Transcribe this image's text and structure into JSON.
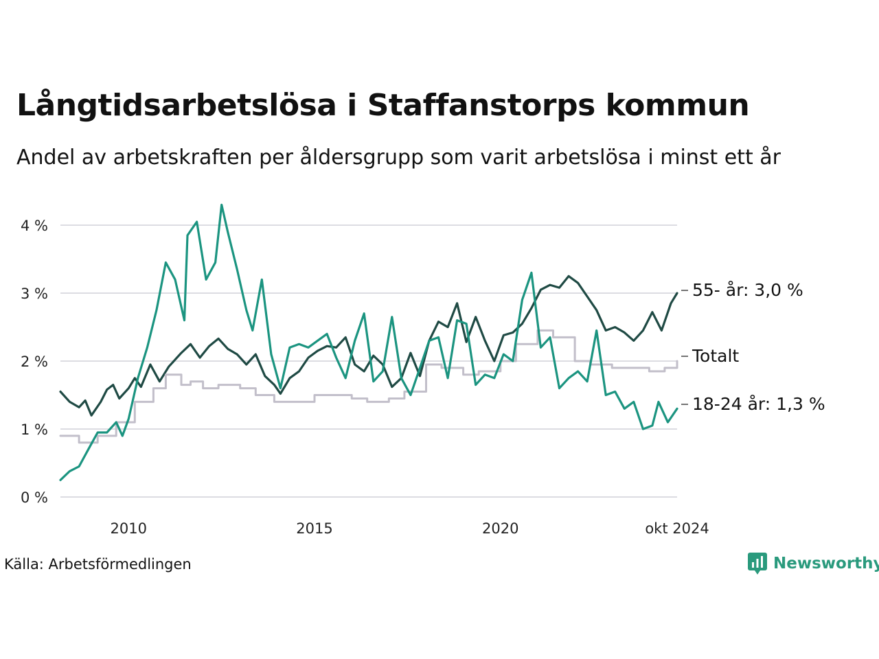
{
  "title": "Långtidsarbetslösa i Staffanstorps kommun",
  "subtitle": "Andel av arbetskraften per åldersgrupp som varit arbetslösa i minst ett år",
  "source": "Källa: Arbetsförmedlingen",
  "brand": "Newsworthy",
  "colors": {
    "s55": "#1f4a44",
    "s1824": "#1b9480",
    "total": "#c2bfca",
    "grid": "#dcdce2",
    "brand": "#2a9a7d"
  },
  "chart_data": {
    "type": "line",
    "title": "Långtidsarbetslösa i Staffanstorps kommun",
    "subtitle": "Andel av arbetskraften per åldersgrupp som varit arbetslösa i minst ett år",
    "xlabel": "",
    "ylabel": "",
    "x_start": "2008-03",
    "x_end": "2024-10",
    "ylim": [
      0,
      4.3
    ],
    "y_ticks": [
      0,
      1,
      2,
      3,
      4
    ],
    "y_tick_labels": [
      "0 %",
      "1 %",
      "2 %",
      "3 %",
      "4 %"
    ],
    "x_ticks": [
      "2010-01",
      "2015-01",
      "2020-01",
      "2024-10"
    ],
    "x_tick_labels": [
      "2010",
      "2015",
      "2020",
      "okt 2024"
    ],
    "grid": true,
    "legend": "end-labels-right",
    "series": [
      {
        "name": "55- år",
        "end_label": "55- år: 3,0 %",
        "color_key": "s55",
        "points": [
          [
            "2008-03",
            1.55
          ],
          [
            "2008-06",
            1.4
          ],
          [
            "2008-09",
            1.32
          ],
          [
            "2008-11",
            1.42
          ],
          [
            "2009-01",
            1.2
          ],
          [
            "2009-04",
            1.4
          ],
          [
            "2009-06",
            1.58
          ],
          [
            "2009-08",
            1.65
          ],
          [
            "2009-10",
            1.45
          ],
          [
            "2010-01",
            1.6
          ],
          [
            "2010-03",
            1.75
          ],
          [
            "2010-05",
            1.62
          ],
          [
            "2010-08",
            1.95
          ],
          [
            "2010-11",
            1.7
          ],
          [
            "2011-02",
            1.92
          ],
          [
            "2011-06",
            2.12
          ],
          [
            "2011-09",
            2.25
          ],
          [
            "2011-12",
            2.05
          ],
          [
            "2012-03",
            2.22
          ],
          [
            "2012-06",
            2.33
          ],
          [
            "2012-09",
            2.18
          ],
          [
            "2012-12",
            2.1
          ],
          [
            "2013-03",
            1.95
          ],
          [
            "2013-06",
            2.1
          ],
          [
            "2013-09",
            1.78
          ],
          [
            "2013-12",
            1.65
          ],
          [
            "2014-02",
            1.52
          ],
          [
            "2014-05",
            1.75
          ],
          [
            "2014-08",
            1.85
          ],
          [
            "2014-11",
            2.05
          ],
          [
            "2015-02",
            2.15
          ],
          [
            "2015-05",
            2.22
          ],
          [
            "2015-08",
            2.2
          ],
          [
            "2015-11",
            2.35
          ],
          [
            "2016-02",
            1.95
          ],
          [
            "2016-05",
            1.85
          ],
          [
            "2016-08",
            2.08
          ],
          [
            "2016-11",
            1.95
          ],
          [
            "2017-02",
            1.62
          ],
          [
            "2017-05",
            1.75
          ],
          [
            "2017-08",
            2.12
          ],
          [
            "2017-11",
            1.78
          ],
          [
            "2018-02",
            2.3
          ],
          [
            "2018-05",
            2.58
          ],
          [
            "2018-08",
            2.5
          ],
          [
            "2018-11",
            2.85
          ],
          [
            "2019-02",
            2.28
          ],
          [
            "2019-05",
            2.65
          ],
          [
            "2019-08",
            2.3
          ],
          [
            "2019-11",
            2.0
          ],
          [
            "2020-02",
            2.38
          ],
          [
            "2020-05",
            2.42
          ],
          [
            "2020-08",
            2.55
          ],
          [
            "2020-11",
            2.78
          ],
          [
            "2021-02",
            3.05
          ],
          [
            "2021-05",
            3.12
          ],
          [
            "2021-08",
            3.08
          ],
          [
            "2021-11",
            3.25
          ],
          [
            "2022-02",
            3.15
          ],
          [
            "2022-05",
            2.95
          ],
          [
            "2022-08",
            2.75
          ],
          [
            "2022-11",
            2.45
          ],
          [
            "2023-02",
            2.5
          ],
          [
            "2023-05",
            2.42
          ],
          [
            "2023-08",
            2.3
          ],
          [
            "2023-11",
            2.45
          ],
          [
            "2024-02",
            2.72
          ],
          [
            "2024-05",
            2.45
          ],
          [
            "2024-08",
            2.85
          ],
          [
            "2024-10",
            3.0
          ]
        ]
      },
      {
        "name": "Totalt",
        "end_label": "Totalt",
        "color_key": "total",
        "points": [
          [
            "2008-03",
            0.9
          ],
          [
            "2008-09",
            0.8
          ],
          [
            "2009-03",
            0.9
          ],
          [
            "2009-09",
            1.1
          ],
          [
            "2010-03",
            1.4
          ],
          [
            "2010-09",
            1.6
          ],
          [
            "2011-01",
            1.8
          ],
          [
            "2011-06",
            1.65
          ],
          [
            "2011-09",
            1.7
          ],
          [
            "2012-01",
            1.6
          ],
          [
            "2012-06",
            1.65
          ],
          [
            "2013-01",
            1.6
          ],
          [
            "2013-06",
            1.5
          ],
          [
            "2013-12",
            1.4
          ],
          [
            "2014-06",
            1.4
          ],
          [
            "2015-01",
            1.5
          ],
          [
            "2016-01",
            1.45
          ],
          [
            "2016-06",
            1.4
          ],
          [
            "2017-01",
            1.45
          ],
          [
            "2017-06",
            1.55
          ],
          [
            "2018-01",
            1.95
          ],
          [
            "2018-06",
            1.9
          ],
          [
            "2019-01",
            1.8
          ],
          [
            "2019-06",
            1.85
          ],
          [
            "2020-01",
            2.0
          ],
          [
            "2020-06",
            2.25
          ],
          [
            "2021-01",
            2.45
          ],
          [
            "2021-06",
            2.35
          ],
          [
            "2022-01",
            2.0
          ],
          [
            "2022-06",
            1.95
          ],
          [
            "2023-01",
            1.9
          ],
          [
            "2023-06",
            1.9
          ],
          [
            "2024-01",
            1.85
          ],
          [
            "2024-06",
            1.9
          ],
          [
            "2024-10",
            2.0
          ]
        ]
      },
      {
        "name": "18-24 år",
        "end_label": "18-24 år: 1,3 %",
        "color_key": "s1824",
        "points": [
          [
            "2008-03",
            0.25
          ],
          [
            "2008-06",
            0.38
          ],
          [
            "2008-09",
            0.45
          ],
          [
            "2008-12",
            0.7
          ],
          [
            "2009-03",
            0.95
          ],
          [
            "2009-06",
            0.95
          ],
          [
            "2009-09",
            1.1
          ],
          [
            "2009-11",
            0.9
          ],
          [
            "2010-01",
            1.15
          ],
          [
            "2010-04",
            1.75
          ],
          [
            "2010-07",
            2.2
          ],
          [
            "2010-10",
            2.75
          ],
          [
            "2011-01",
            3.45
          ],
          [
            "2011-04",
            3.2
          ],
          [
            "2011-07",
            2.6
          ],
          [
            "2011-08",
            3.85
          ],
          [
            "2011-11",
            4.05
          ],
          [
            "2012-02",
            3.2
          ],
          [
            "2012-05",
            3.45
          ],
          [
            "2012-07",
            4.3
          ],
          [
            "2012-09",
            3.9
          ],
          [
            "2012-12",
            3.35
          ],
          [
            "2013-03",
            2.75
          ],
          [
            "2013-05",
            2.45
          ],
          [
            "2013-08",
            3.2
          ],
          [
            "2013-11",
            2.1
          ],
          [
            "2014-02",
            1.6
          ],
          [
            "2014-05",
            2.2
          ],
          [
            "2014-08",
            2.25
          ],
          [
            "2014-11",
            2.2
          ],
          [
            "2015-02",
            2.3
          ],
          [
            "2015-05",
            2.4
          ],
          [
            "2015-08",
            2.05
          ],
          [
            "2015-11",
            1.75
          ],
          [
            "2016-02",
            2.3
          ],
          [
            "2016-05",
            2.7
          ],
          [
            "2016-08",
            1.7
          ],
          [
            "2016-11",
            1.85
          ],
          [
            "2017-02",
            2.65
          ],
          [
            "2017-05",
            1.75
          ],
          [
            "2017-08",
            1.5
          ],
          [
            "2017-11",
            1.9
          ],
          [
            "2018-02",
            2.3
          ],
          [
            "2018-05",
            2.35
          ],
          [
            "2018-08",
            1.75
          ],
          [
            "2018-11",
            2.6
          ],
          [
            "2019-02",
            2.55
          ],
          [
            "2019-05",
            1.65
          ],
          [
            "2019-08",
            1.8
          ],
          [
            "2019-11",
            1.75
          ],
          [
            "2020-02",
            2.1
          ],
          [
            "2020-05",
            2.0
          ],
          [
            "2020-08",
            2.9
          ],
          [
            "2020-11",
            3.3
          ],
          [
            "2021-02",
            2.2
          ],
          [
            "2021-05",
            2.35
          ],
          [
            "2021-08",
            1.6
          ],
          [
            "2021-11",
            1.75
          ],
          [
            "2022-02",
            1.85
          ],
          [
            "2022-05",
            1.7
          ],
          [
            "2022-08",
            2.45
          ],
          [
            "2022-11",
            1.5
          ],
          [
            "2023-02",
            1.55
          ],
          [
            "2023-05",
            1.3
          ],
          [
            "2023-08",
            1.4
          ],
          [
            "2023-11",
            1.0
          ],
          [
            "2024-02",
            1.05
          ],
          [
            "2024-04",
            1.4
          ],
          [
            "2024-07",
            1.1
          ],
          [
            "2024-10",
            1.3
          ]
        ]
      }
    ]
  }
}
